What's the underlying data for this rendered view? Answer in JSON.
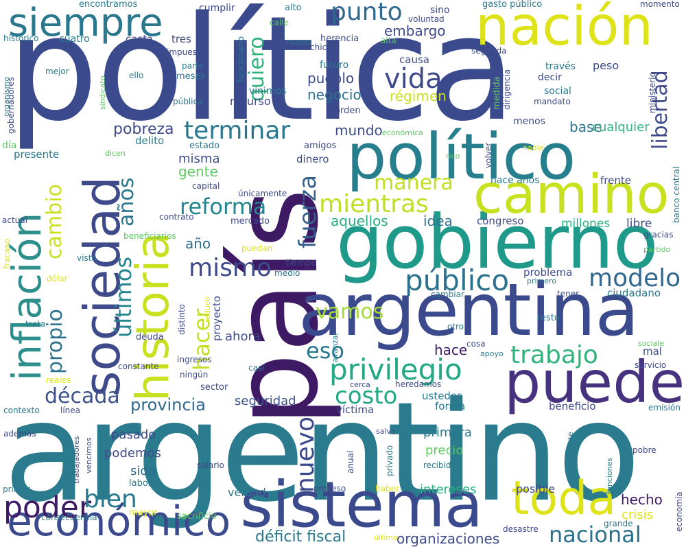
{
  "words": [
    {
      "text": "política",
      "color": "#3b4a8c"
    },
    {
      "text": "país",
      "color": "#3e1a64"
    },
    {
      "text": "argentino",
      "color": "#2a7b8e"
    },
    {
      "text": "argentina",
      "color": "#3b4a8c"
    },
    {
      "text": "gobierno",
      "color": "#1f9a8a"
    },
    {
      "text": "político",
      "color": "#277f8e"
    },
    {
      "text": "sistema",
      "color": "#3b4a8c"
    },
    {
      "text": "nación",
      "color": "#dde318"
    },
    {
      "text": "camino",
      "color": "#c7e020"
    },
    {
      "text": "puede",
      "color": "#46327e"
    },
    {
      "text": "sociedad",
      "color": "#3e4a89"
    },
    {
      "text": "historia",
      "color": "#c8e020"
    },
    {
      "text": "inflación",
      "color": "#2c8f8c"
    },
    {
      "text": "siempre",
      "color": "#2a788e"
    },
    {
      "text": "económico",
      "color": "#3b4a8c"
    },
    {
      "text": "toda",
      "color": "#dde318"
    },
    {
      "text": "privilegio",
      "color": "#22a884"
    },
    {
      "text": "público",
      "color": "#2c728e"
    },
    {
      "text": "terminar",
      "color": "#2a788e"
    },
    {
      "text": "reforma",
      "color": "#25858e"
    },
    {
      "text": "mientras",
      "color": "#bddf26"
    },
    {
      "text": "trabajo",
      "color": "#2fb47c"
    },
    {
      "text": "modelo",
      "color": "#31688e"
    },
    {
      "text": "poder",
      "color": "#3e1a64"
    },
    {
      "text": "nacional",
      "color": "#2c728e"
    },
    {
      "text": "punto",
      "color": "#31688e"
    },
    {
      "text": "vida",
      "color": "#3e4a89"
    },
    {
      "text": "mismo",
      "color": "#3e4a89"
    },
    {
      "text": "década",
      "color": "#3b528b"
    },
    {
      "text": "costo",
      "color": "#22a884"
    },
    {
      "text": "vamos",
      "color": "#a5db36"
    },
    {
      "text": "bien",
      "color": "#2a788e"
    },
    {
      "text": "nuevo",
      "color": "#3b4a8c"
    },
    {
      "text": "manera",
      "color": "#c2df23"
    },
    {
      "text": "eso",
      "color": "#2a788e"
    },
    {
      "text": "fuerza",
      "color": "#35608d"
    },
    {
      "text": "cambio",
      "color": "#c8e020"
    },
    {
      "text": "hacer",
      "color": "#c2df23"
    },
    {
      "text": "últimos",
      "color": "#24868e"
    },
    {
      "text": "años",
      "color": "#2a788e"
    },
    {
      "text": "propio",
      "color": "#2c728e"
    },
    {
      "text": "quiero",
      "color": "#2fb47c"
    },
    {
      "text": "libertad",
      "color": "#3e4a89"
    },
    {
      "text": "provincia",
      "color": "#31688e"
    },
    {
      "text": "pobreza",
      "color": "#3e4a89"
    },
    {
      "text": "déficit fiscal",
      "color": "#2a788e"
    },
    {
      "text": "organizaciones",
      "color": "#3e4a89"
    },
    {
      "text": "embargo",
      "color": "#3e4a89"
    },
    {
      "text": "mundo",
      "color": "#3e4a89"
    },
    {
      "text": "pueblo",
      "color": "#3e4a89"
    },
    {
      "text": "negocio",
      "color": "#2c728e"
    },
    {
      "text": "régimen",
      "color": "#c8e020"
    },
    {
      "text": "aquellos",
      "color": "#27ad81"
    },
    {
      "text": "idea",
      "color": "#2c728e"
    },
    {
      "text": "hace",
      "color": "#3e1a64"
    },
    {
      "text": "hecho",
      "color": "#3e1a64"
    },
    {
      "text": "base",
      "color": "#2c728e"
    },
    {
      "text": "cualquier",
      "color": "#2fb47c"
    },
    {
      "text": "gente",
      "color": "#5ec962"
    },
    {
      "text": "misma",
      "color": "#3e4a89"
    },
    {
      "text": "año",
      "color": "#31688e"
    },
    {
      "text": "ahora",
      "color": "#3e4a89"
    },
    {
      "text": "seguridad",
      "color": "#3b528b"
    },
    {
      "text": "pasado",
      "color": "#3e4a89"
    },
    {
      "text": "podemos",
      "color": "#3e4a89"
    },
    {
      "text": "sido",
      "color": "#31688e"
    },
    {
      "text": "primera",
      "color": "#2a788e"
    },
    {
      "text": "precio",
      "color": "#5ec962"
    },
    {
      "text": "intereses",
      "color": "#27ad81"
    },
    {
      "text": "verdad",
      "color": "#2a788e"
    },
    {
      "text": "posible",
      "color": "#3e4a89"
    },
    {
      "text": "crisis",
      "color": "#dde318"
    },
    {
      "text": "congreso",
      "color": "#3e4a89"
    },
    {
      "text": "millones",
      "color": "#27ad81"
    },
    {
      "text": "libre",
      "color": "#3e4a89"
    },
    {
      "text": "dinero",
      "color": "#3e4a89"
    },
    {
      "text": "causa",
      "color": "#3e4a89"
    },
    {
      "text": "recurso",
      "color": "#3e4a89"
    },
    {
      "text": "ustedes",
      "color": "#2a788e"
    },
    {
      "text": "forma",
      "color": "#2a788e"
    },
    {
      "text": "víctima",
      "color": "#3e4a89"
    },
    {
      "text": "beneficio",
      "color": "#3e4a89"
    },
    {
      "text": "problema",
      "color": "#3e4a89"
    },
    {
      "text": "ciudadano",
      "color": "#2a788e"
    },
    {
      "text": "frente",
      "color": "#3e4a89"
    },
    {
      "text": "hace años",
      "color": "#2a788e"
    },
    {
      "text": "menos",
      "color": "#3e4a89"
    },
    {
      "text": "sino",
      "color": "#3e4a89"
    },
    {
      "text": "futuro",
      "color": "#2a788e"
    },
    {
      "text": "vinimos",
      "color": "#2a788e"
    },
    {
      "text": "tres",
      "color": "#3e4a89"
    },
    {
      "text": "casta",
      "color": "#3e4a89"
    },
    {
      "text": "cuatro",
      "color": "#2a788e"
    },
    {
      "text": "cumplir",
      "color": "#3e4a89"
    },
    {
      "text": "encontramos",
      "color": "#2a788e"
    },
    {
      "text": "alto",
      "color": "#2a788e"
    },
    {
      "text": "herencia",
      "color": "#3e4a89"
    },
    {
      "text": "chicos",
      "color": "#3e4a89"
    },
    {
      "text": "alta",
      "color": "#5ec962"
    },
    {
      "text": "mano",
      "color": "#2a788e"
    },
    {
      "text": "calle",
      "color": "#5ec962"
    },
    {
      "text": "voluntad",
      "color": "#3e4a89"
    },
    {
      "text": "gasto público",
      "color": "#2a788e"
    },
    {
      "text": "momento",
      "color": "#3e4a89"
    },
    {
      "text": "segunda",
      "color": "#3e4a89"
    },
    {
      "text": "peso",
      "color": "#3e4a89"
    },
    {
      "text": "través",
      "color": "#2a788e"
    },
    {
      "text": "decir",
      "color": "#3e4a89"
    },
    {
      "text": "social",
      "color": "#2a788e"
    },
    {
      "text": "mandato",
      "color": "#3e4a89"
    },
    {
      "text": "medida",
      "color": "#5ec962"
    },
    {
      "text": "dirigencia",
      "color": "#3e4a89"
    },
    {
      "text": "ministerio",
      "color": "#3e4a89"
    },
    {
      "text": "orden",
      "color": "#3e4a89"
    },
    {
      "text": "económica",
      "color": "#5ec962"
    },
    {
      "text": "amigos",
      "color": "#3e4a89"
    },
    {
      "text": "estado",
      "color": "#2a788e"
    },
    {
      "text": "delito",
      "color": "#2a788e"
    },
    {
      "text": "presente",
      "color": "#2a788e"
    },
    {
      "text": "día",
      "color": "#5ec962"
    },
    {
      "text": "capital",
      "color": "#3e4a89"
    },
    {
      "text": "dicen",
      "color": "#5ec962"
    },
    {
      "text": "únicamente",
      "color": "#3e4a89"
    },
    {
      "text": "contrato",
      "color": "#3e4a89"
    },
    {
      "text": "mercado",
      "color": "#3e4a89"
    },
    {
      "text": "actual",
      "color": "#3e4a89"
    },
    {
      "text": "beneficiarios",
      "color": "#5ec962"
    },
    {
      "text": "fracaso",
      "color": "#dde318"
    },
    {
      "text": "visto",
      "color": "#2a788e"
    },
    {
      "text": "dólar",
      "color": "#dde318"
    },
    {
      "text": "tiempo",
      "color": "#3e4a89"
    },
    {
      "text": "medio",
      "color": "#2a788e"
    },
    {
      "text": "puedan",
      "color": "#dde318"
    },
    {
      "text": "distinto",
      "color": "#3e4a89"
    },
    {
      "text": "reducir",
      "color": "#dde318"
    },
    {
      "text": "proyecto",
      "color": "#3e4a89"
    },
    {
      "text": "trata",
      "color": "#2a788e"
    },
    {
      "text": "deuda",
      "color": "#3e4a89"
    },
    {
      "text": "ingresos",
      "color": "#3e4a89"
    },
    {
      "text": "constante",
      "color": "#3e4a89"
    },
    {
      "text": "ningún",
      "color": "#3e4a89"
    },
    {
      "text": "sector",
      "color": "#3e4a89"
    },
    {
      "text": "casi",
      "color": "#2a788e"
    },
    {
      "text": "cerca",
      "color": "#3e4a89"
    },
    {
      "text": "heredamos",
      "color": "#3e4a89"
    },
    {
      "text": "reales",
      "color": "#dde318"
    },
    {
      "text": "contexto",
      "color": "#2a788e"
    },
    {
      "text": "línea",
      "color": "#3e4a89"
    },
    {
      "text": "además",
      "color": "#3e4a89"
    },
    {
      "text": "trabajadores",
      "color": "#3e4a89"
    },
    {
      "text": "vencimos",
      "color": "#3e4a89"
    },
    {
      "text": "laboral",
      "color": "#2a788e"
    },
    {
      "text": "primer",
      "color": "#2a788e"
    },
    {
      "text": "consecuencia",
      "color": "#2a788e"
    },
    {
      "text": "mayor",
      "color": "#dde318"
    },
    {
      "text": "sacrificio",
      "color": "#5ec962"
    },
    {
      "text": "salario",
      "color": "#3e4a89"
    },
    {
      "text": "decreto",
      "color": "#2a788e"
    },
    {
      "text": "proceso",
      "color": "#3e4a89"
    },
    {
      "text": "haber",
      "color": "#dde318"
    },
    {
      "text": "último",
      "color": "#dde318"
    },
    {
      "text": "anual",
      "color": "#3e4a89"
    },
    {
      "text": "privado",
      "color": "#2a788e"
    },
    {
      "text": "salvo",
      "color": "#3e4a89"
    },
    {
      "text": "recibido",
      "color": "#2a788e"
    },
    {
      "text": "desastre",
      "color": "#3e4a89"
    },
    {
      "text": "grande",
      "color": "#2a788e"
    },
    {
      "text": "economía",
      "color": "#3e4a89"
    },
    {
      "text": "presidente",
      "color": "#2a788e"
    },
    {
      "text": "funciones",
      "color": "#2a788e"
    },
    {
      "text": "pobre",
      "color": "#3e4a89"
    },
    {
      "text": "emisión",
      "color": "#2a788e"
    },
    {
      "text": "sociale",
      "color": "#5ec962"
    },
    {
      "text": "servicio",
      "color": "#3e4a89"
    },
    {
      "text": "mal",
      "color": "#3e4a89"
    },
    {
      "text": "apoyo",
      "color": "#2a788e"
    },
    {
      "text": "cosa",
      "color": "#3e4a89"
    },
    {
      "text": "otro",
      "color": "#2a788e"
    },
    {
      "text": "avanzar",
      "color": "#2a788e"
    },
    {
      "text": "resto",
      "color": "#2a788e"
    },
    {
      "text": "tener",
      "color": "#3e4a89"
    },
    {
      "text": "primero",
      "color": "#2a788e"
    },
    {
      "text": "cambiar",
      "color": "#2a788e"
    },
    {
      "text": "gracias",
      "color": "#3e4a89"
    },
    {
      "text": "partido",
      "color": "#5ec962"
    },
    {
      "text": "banco central",
      "color": "#2a788e"
    },
    {
      "text": "volver",
      "color": "#3e4a89"
    },
    {
      "text": "rico",
      "color": "#5ec962"
    },
    {
      "text": "nadie",
      "color": "#dde318"
    },
    {
      "text": "impuesto",
      "color": "#3e4a89"
    },
    {
      "text": "parte",
      "color": "#2a788e"
    },
    {
      "text": "meses",
      "color": "#2a788e"
    },
    {
      "text": "ello",
      "color": "#2a788e"
    },
    {
      "text": "pública",
      "color": "#2a788e"
    },
    {
      "text": "mejor",
      "color": "#2a788e"
    },
    {
      "text": "sindicato",
      "color": "#5ec962"
    },
    {
      "text": "histórico",
      "color": "#2a788e"
    },
    {
      "text": "gobernadores",
      "color": "#3e4a89"
    },
    {
      "text": "organismo",
      "color": "#2a788e"
    },
    {
      "text": "funcionario",
      "color": "#2a788e"
    }
  ]
}
